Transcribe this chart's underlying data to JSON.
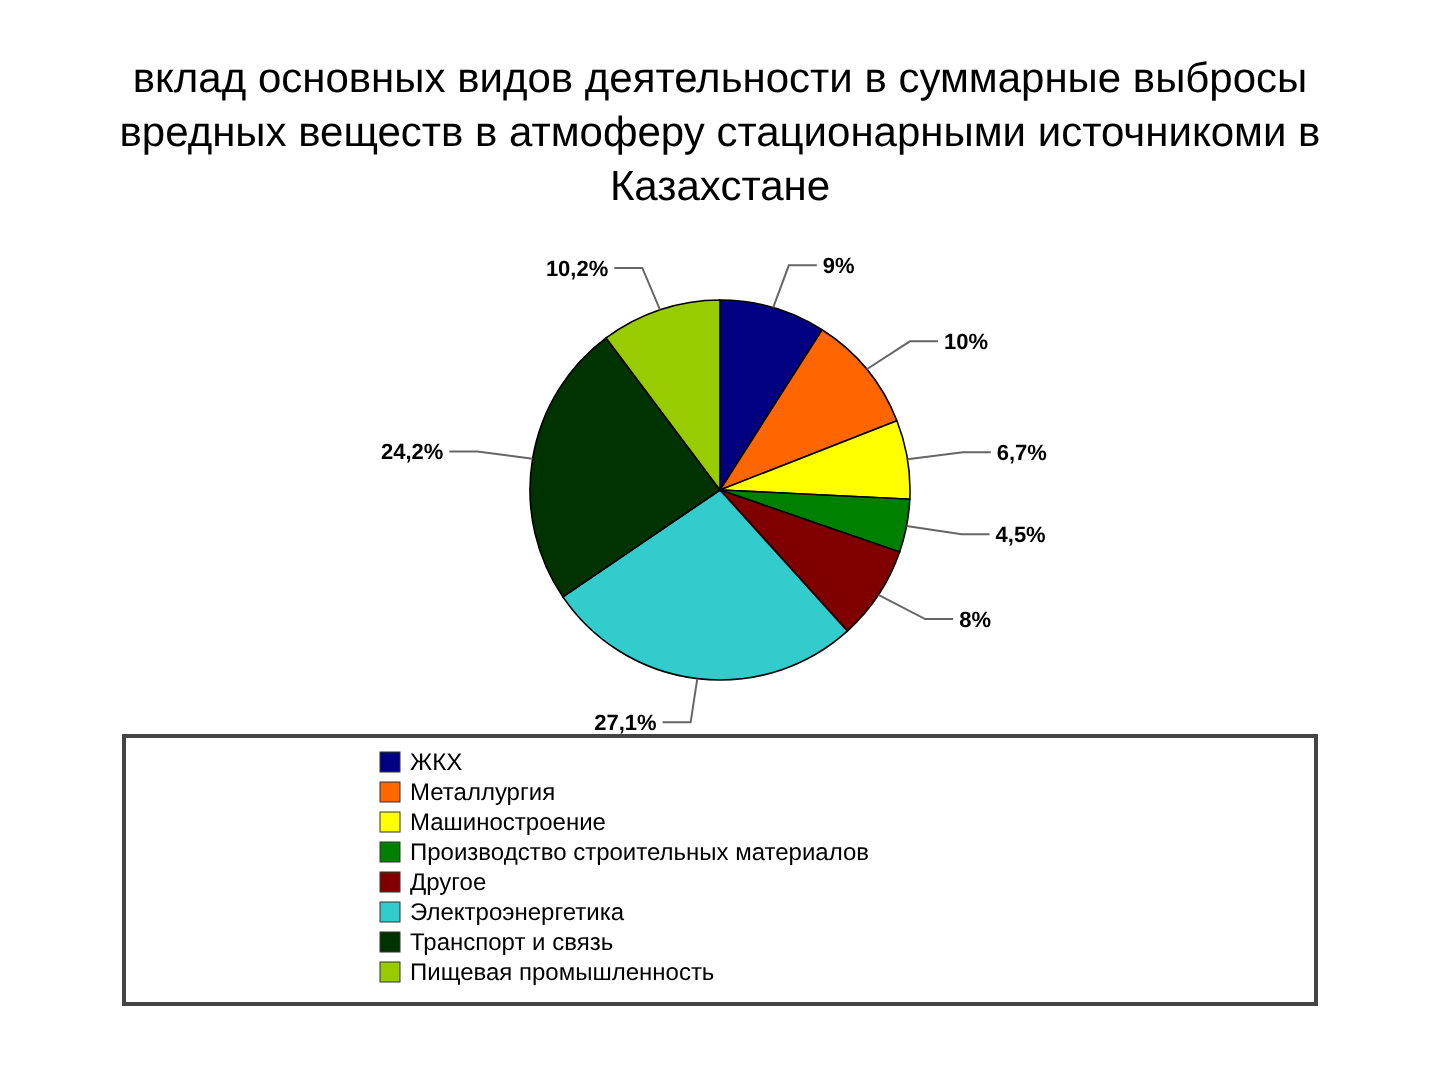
{
  "chart_data": {
    "type": "pie",
    "title": "вклад основных видов деятельности в суммарные выбросы вредных веществ в атмоферу стационарными источникоми в Казахстане",
    "categories": [
      "ЖКХ",
      "Металлургия",
      "Машиностроение",
      "Производство строительных материалов",
      "Другое",
      "Электроэнергетика",
      "Транспорт и связь",
      "Пищевая промышленность"
    ],
    "values": [
      9,
      10,
      6.7,
      4.5,
      8,
      27.1,
      24.2,
      10.2
    ],
    "value_labels": [
      "9%",
      "10%",
      "6,7%",
      "4,5%",
      "8%",
      "27,1%",
      "24,2%",
      "10,2%"
    ],
    "colors": [
      "#000080",
      "#ff6600",
      "#ffff00",
      "#008000",
      "#800000",
      "#33cccc",
      "#003300",
      "#99cc00"
    ],
    "legend": "bottom"
  }
}
